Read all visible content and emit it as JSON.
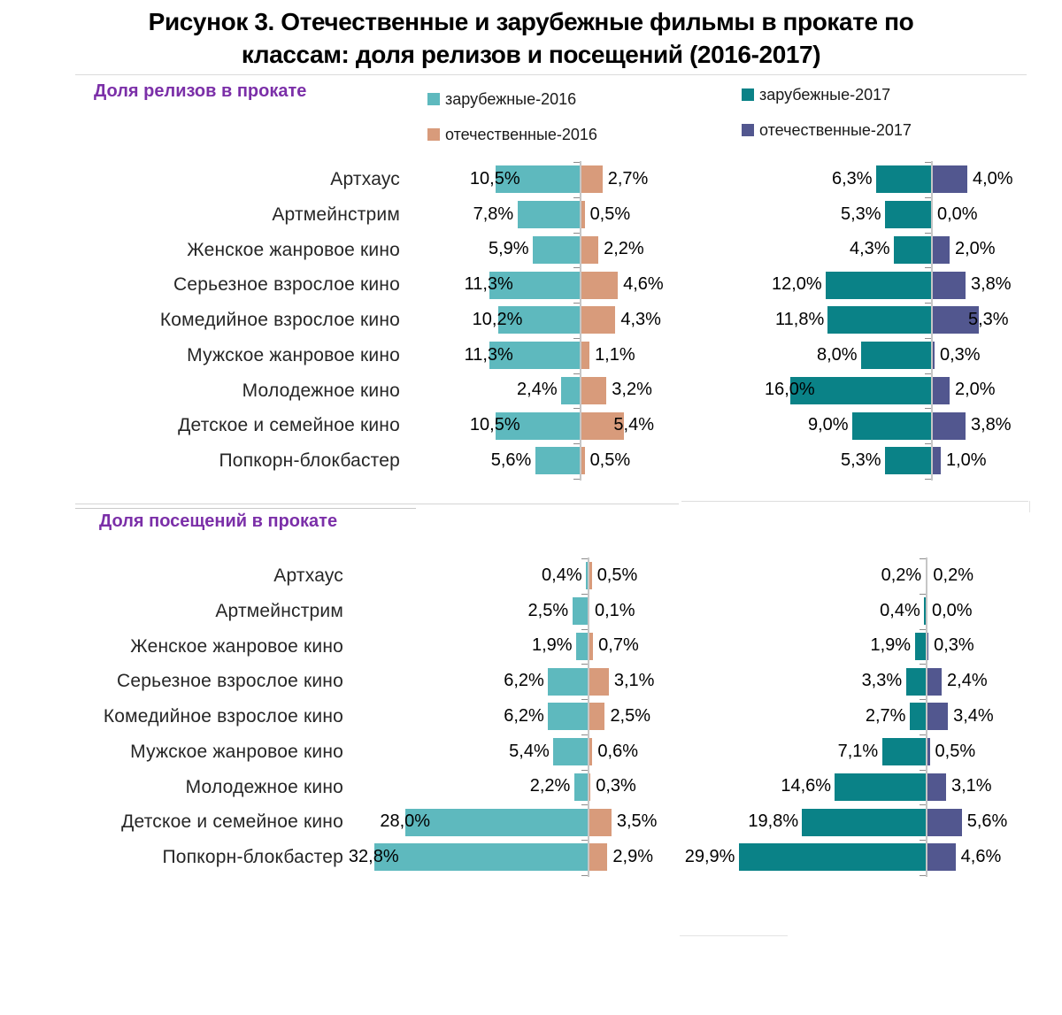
{
  "title": {
    "line1": "Рисунок 3. Отечественные и зарубежные фильмы в прокате по",
    "line2": "классам: доля релизов и посещений (2016-2017)"
  },
  "sections": {
    "releases": {
      "header": "Доля релизов в прокате"
    },
    "visits": {
      "header": "Доля посещений в прокате"
    }
  },
  "legend": {
    "foreign_2016": "зарубежные-2016",
    "domestic_2016": "отечественные-2016",
    "foreign_2017": "зарубежные-2017",
    "domestic_2017": "отечественные-2017"
  },
  "colors": {
    "foreign_2016": "#5EB9BE",
    "domestic_2016": "#D89B7B",
    "foreign_2017": "#0A8287",
    "domestic_2017": "#52578F",
    "section_header": "#7B2FA8",
    "axis_line": "#C6C6C6",
    "axis_tick": "#8C8C8C"
  },
  "chart_data": [
    {
      "id": "releases_2016",
      "panel": "Доля релизов в прокате",
      "year": "2016",
      "type": "bar",
      "orientation": "diverging-horizontal",
      "value_format": "one-decimal-comma-percent",
      "show_category_labels": true,
      "categories": [
        "Артхаус",
        "Артмейнстрим",
        "Женское жанровое кино",
        "Серьезное взрослое кино",
        "Комедийное взрослое кино",
        "Мужское жанровое кино",
        "Молодежное кино",
        "Детское и семейное кино",
        "Попкорн-блокбастер"
      ],
      "series": [
        {
          "name": "зарубежные-2016",
          "side": "left",
          "color_key": "foreign_2016",
          "values": [
            10.5,
            7.8,
            5.9,
            11.3,
            10.2,
            11.3,
            2.4,
            10.5,
            5.6
          ]
        },
        {
          "name": "отечественные-2016",
          "side": "right",
          "color_key": "domestic_2016",
          "values": [
            2.7,
            0.5,
            2.2,
            4.6,
            4.3,
            1.1,
            3.2,
            5.4,
            0.5
          ]
        }
      ]
    },
    {
      "id": "releases_2017",
      "panel": "Доля релизов в прокате",
      "year": "2017",
      "type": "bar",
      "orientation": "diverging-horizontal",
      "value_format": "one-decimal-comma-percent",
      "show_category_labels": false,
      "categories": [
        "Артхаус",
        "Артмейнстрим",
        "Женское жанровое кино",
        "Серьезное взрослое кино",
        "Комедийное взрослое кино",
        "Мужское жанровое кино",
        "Молодежное кино",
        "Детское и семейное кино",
        "Попкорн-блокбастер"
      ],
      "series": [
        {
          "name": "зарубежные-2017",
          "side": "left",
          "color_key": "foreign_2017",
          "values": [
            6.3,
            5.3,
            4.3,
            12.0,
            11.8,
            8.0,
            16.0,
            9.0,
            5.3
          ]
        },
        {
          "name": "отечественные-2017",
          "side": "right",
          "color_key": "domestic_2017",
          "values": [
            4.0,
            0.0,
            2.0,
            3.8,
            5.3,
            0.3,
            2.0,
            3.8,
            1.0
          ]
        }
      ]
    },
    {
      "id": "visits_2016",
      "panel": "Доля посещений в прокате",
      "year": "2016",
      "type": "bar",
      "orientation": "diverging-horizontal",
      "value_format": "one-decimal-comma-percent",
      "show_category_labels": true,
      "categories": [
        "Артхаус",
        "Артмейнстрим",
        "Женское жанровое кино",
        "Серьезное взрослое кино",
        "Комедийное взрослое кино",
        "Мужское жанровое кино",
        "Молодежное кино",
        "Детское и семейное кино",
        "Попкорн-блокбастер"
      ],
      "series": [
        {
          "name": "зарубежные-2016",
          "side": "left",
          "color_key": "foreign_2016",
          "values": [
            0.4,
            2.5,
            1.9,
            6.2,
            6.2,
            5.4,
            2.2,
            28.0,
            32.8
          ]
        },
        {
          "name": "отечественные-2016",
          "side": "right",
          "color_key": "domestic_2016",
          "values": [
            0.5,
            0.1,
            0.7,
            3.1,
            2.5,
            0.6,
            0.3,
            3.5,
            2.9
          ]
        }
      ]
    },
    {
      "id": "visits_2017",
      "panel": "Доля посещений в прокате",
      "year": "2017",
      "type": "bar",
      "orientation": "diverging-horizontal",
      "value_format": "one-decimal-comma-percent",
      "show_category_labels": false,
      "categories": [
        "Артхаус",
        "Артмейнстрим",
        "Женское жанровое кино",
        "Серьезное взрослое кино",
        "Комедийное взрослое кино",
        "Мужское жанровое кино",
        "Молодежное кино",
        "Детское и семейное кино",
        "Попкорн-блокбастер"
      ],
      "series": [
        {
          "name": "зарубежные-2017",
          "side": "left",
          "color_key": "foreign_2017",
          "values": [
            0.2,
            0.4,
            1.9,
            3.3,
            2.7,
            7.1,
            14.6,
            19.8,
            29.9
          ]
        },
        {
          "name": "отечественные-2017",
          "side": "right",
          "color_key": "domestic_2017",
          "values": [
            0.2,
            0.0,
            0.3,
            2.4,
            3.4,
            0.5,
            3.1,
            5.6,
            4.6
          ]
        }
      ]
    }
  ]
}
